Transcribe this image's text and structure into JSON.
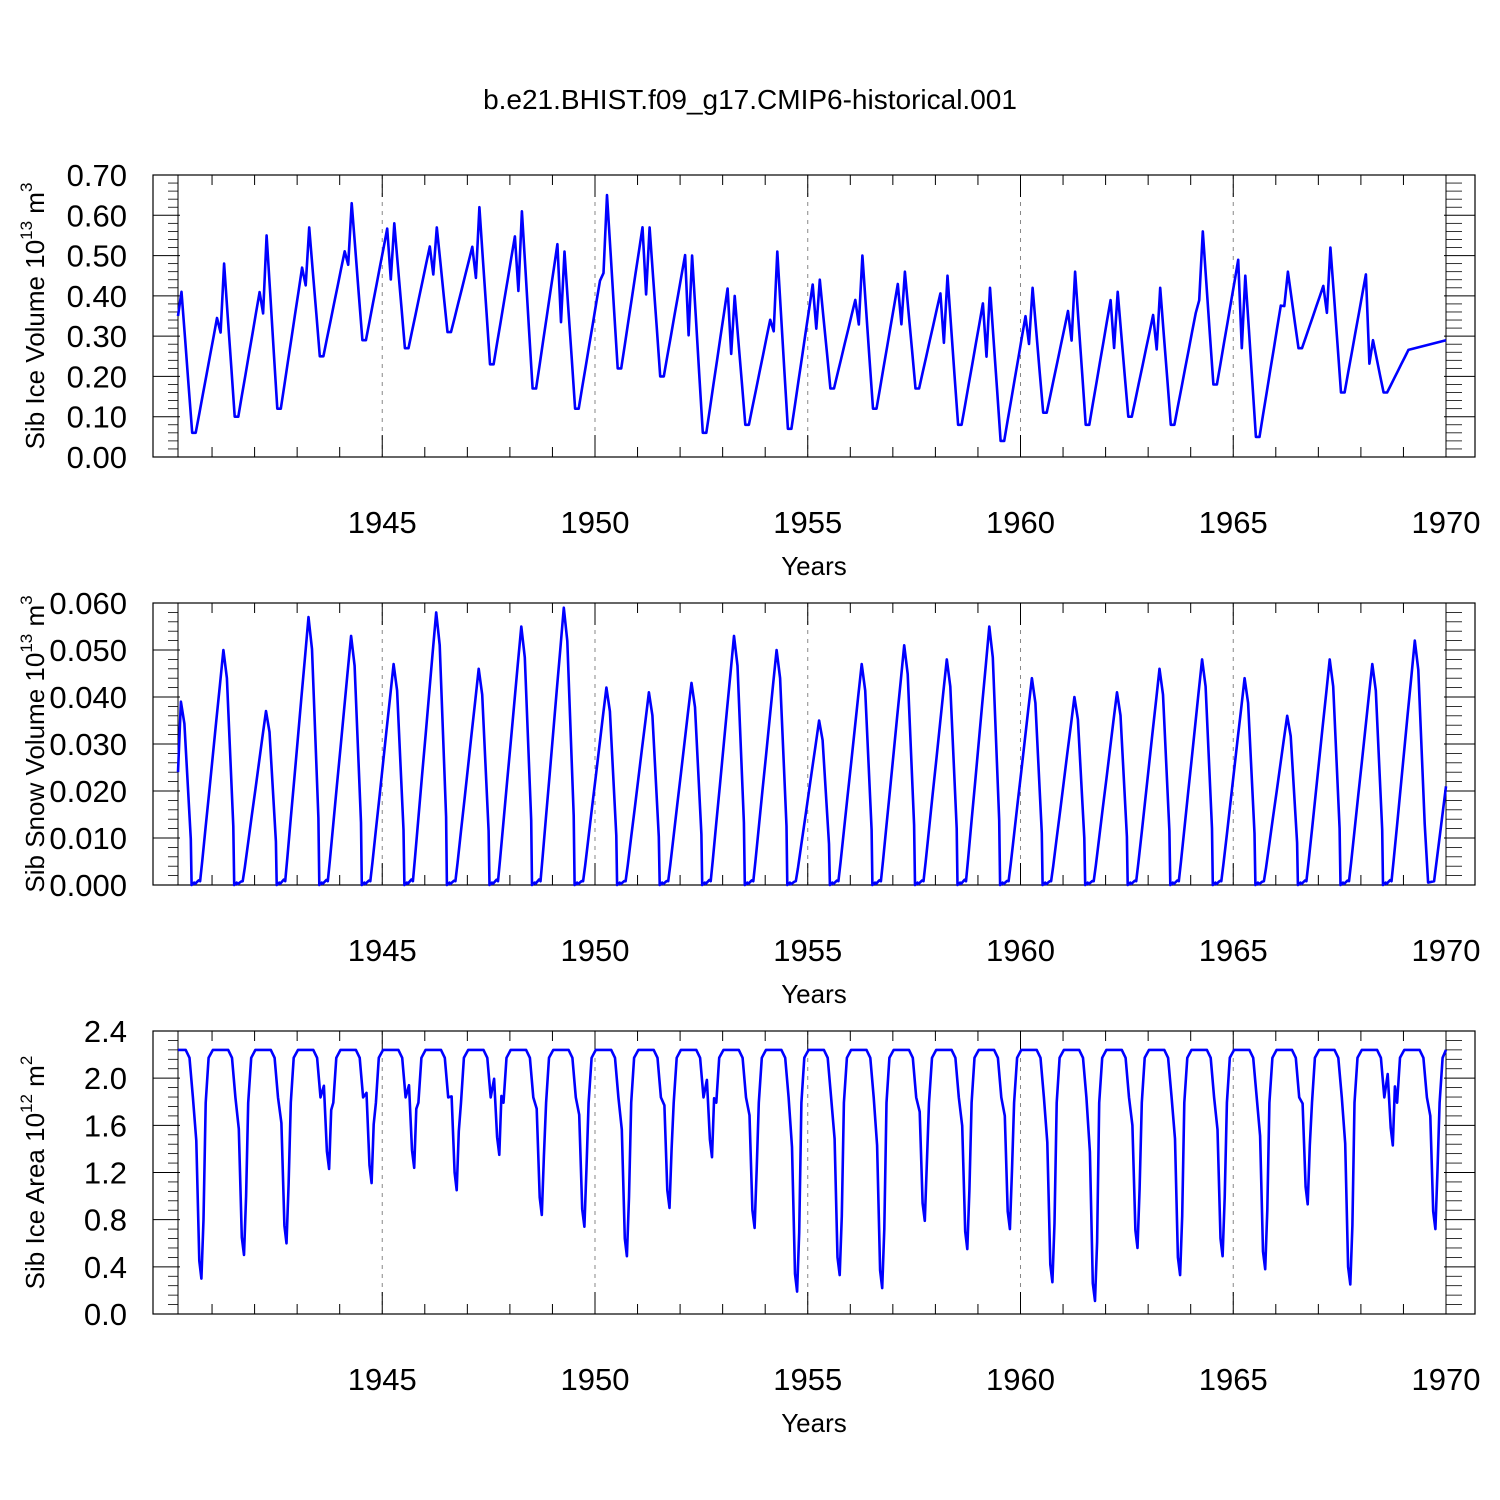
{
  "figure_title": "b.e21.BHIST.f09_g17.CMIP6-historical.001",
  "colors": {
    "series": "#0000ff",
    "axis": "#000000",
    "grid": "#888888"
  },
  "chart_data": [
    {
      "type": "line",
      "id": "ice-volume",
      "title": "",
      "xlabel": "Years",
      "ylabel_parts": [
        "Sib Ice Volume 10",
        "13",
        " m",
        "3"
      ],
      "xlim": [
        1940.2,
        1970.0
      ],
      "ylim": [
        0.0,
        0.7
      ],
      "yticks": [
        0.0,
        0.1,
        0.2,
        0.3,
        0.4,
        0.5,
        0.6,
        0.7
      ],
      "ytick_labels": [
        "0.00",
        "0.10",
        "0.20",
        "0.30",
        "0.40",
        "0.50",
        "0.60",
        "0.70"
      ],
      "xticks": [
        1945,
        1950,
        1955,
        1960,
        1965,
        1970
      ],
      "xtick_labels": [
        "1945",
        "1950",
        "1955",
        "1960",
        "1965",
        "1970"
      ],
      "grid_x": [
        1945,
        1950,
        1955,
        1960,
        1965
      ],
      "series": [
        {
          "name": "Sib Ice Volume",
          "annual": [
            {
              "min": 0.06,
              "max": 0.41
            },
            {
              "min": 0.1,
              "max": 0.48
            },
            {
              "min": 0.12,
              "max": 0.55
            },
            {
              "min": 0.25,
              "max": 0.57
            },
            {
              "min": 0.29,
              "max": 0.63
            },
            {
              "min": 0.27,
              "max": 0.58
            },
            {
              "min": 0.31,
              "max": 0.57
            },
            {
              "min": 0.23,
              "max": 0.62
            },
            {
              "min": 0.17,
              "max": 0.61
            },
            {
              "min": 0.12,
              "max": 0.51
            },
            {
              "min": 0.22,
              "max": 0.65
            },
            {
              "min": 0.2,
              "max": 0.57
            },
            {
              "min": 0.06,
              "max": 0.5
            },
            {
              "min": 0.08,
              "max": 0.4
            },
            {
              "min": 0.07,
              "max": 0.51
            },
            {
              "min": 0.17,
              "max": 0.44
            },
            {
              "min": 0.12,
              "max": 0.5
            },
            {
              "min": 0.17,
              "max": 0.46
            },
            {
              "min": 0.08,
              "max": 0.45
            },
            {
              "min": 0.04,
              "max": 0.42
            },
            {
              "min": 0.11,
              "max": 0.42
            },
            {
              "min": 0.08,
              "max": 0.46
            },
            {
              "min": 0.1,
              "max": 0.41
            },
            {
              "min": 0.08,
              "max": 0.42
            },
            {
              "min": 0.18,
              "max": 0.56
            },
            {
              "min": 0.05,
              "max": 0.45
            },
            {
              "min": 0.27,
              "max": 0.46
            },
            {
              "min": 0.16,
              "max": 0.52
            },
            {
              "min": 0.16,
              "max": 0.29
            }
          ]
        }
      ]
    },
    {
      "type": "line",
      "id": "snow-volume",
      "title": "",
      "xlabel": "Years",
      "ylabel_parts": [
        "Sib Snow Volume 10",
        "13",
        " m",
        "3"
      ],
      "xlim": [
        1940.2,
        1970.0
      ],
      "ylim": [
        0.0,
        0.06
      ],
      "yticks": [
        0.0,
        0.01,
        0.02,
        0.03,
        0.04,
        0.05,
        0.06
      ],
      "ytick_labels": [
        "0.000",
        "0.010",
        "0.020",
        "0.030",
        "0.040",
        "0.050",
        "0.060"
      ],
      "xticks": [
        1945,
        1950,
        1955,
        1960,
        1965,
        1970
      ],
      "xtick_labels": [
        "1945",
        "1950",
        "1955",
        "1960",
        "1965",
        "1970"
      ],
      "grid_x": [
        1945,
        1950,
        1955,
        1960,
        1965
      ],
      "series": [
        {
          "name": "Sib Snow Volume",
          "annual_peak": [
            0.039,
            0.05,
            0.037,
            0.057,
            0.053,
            0.047,
            0.058,
            0.046,
            0.055,
            0.059,
            0.042,
            0.041,
            0.043,
            0.053,
            0.05,
            0.035,
            0.047,
            0.051,
            0.048,
            0.055,
            0.044,
            0.04,
            0.041,
            0.046,
            0.048,
            0.044,
            0.036,
            0.048,
            0.047,
            0.052
          ],
          "start": 0.024,
          "end": 0.021
        }
      ]
    },
    {
      "type": "line",
      "id": "ice-area",
      "title": "",
      "xlabel": "Years",
      "ylabel_parts": [
        "Sib Ice Area 10",
        "12",
        " m",
        "2"
      ],
      "xlim": [
        1940.2,
        1970.0
      ],
      "ylim": [
        0.0,
        2.4
      ],
      "yticks": [
        0.0,
        0.4,
        0.8,
        1.2,
        1.6,
        2.0,
        2.4
      ],
      "ytick_labels": [
        "0.0",
        "0.4",
        "0.8",
        "1.2",
        "1.6",
        "2.0",
        "2.4"
      ],
      "xticks": [
        1945,
        1950,
        1955,
        1960,
        1965,
        1970
      ],
      "xtick_labels": [
        "1945",
        "1950",
        "1955",
        "1960",
        "1965",
        "1970"
      ],
      "grid_x": [
        1945,
        1950,
        1955,
        1960,
        1965
      ],
      "series": [
        {
          "name": "Sib Ice Area",
          "max": 2.24,
          "annual_min": [
            0.3,
            0.5,
            0.6,
            1.23,
            1.11,
            1.24,
            1.05,
            1.35,
            0.84,
            0.74,
            0.49,
            0.9,
            1.33,
            0.73,
            0.19,
            0.33,
            0.22,
            0.79,
            0.55,
            0.72,
            0.27,
            0.11,
            0.56,
            0.33,
            0.49,
            0.38,
            0.93,
            0.25,
            1.43,
            0.72
          ]
        }
      ]
    }
  ]
}
